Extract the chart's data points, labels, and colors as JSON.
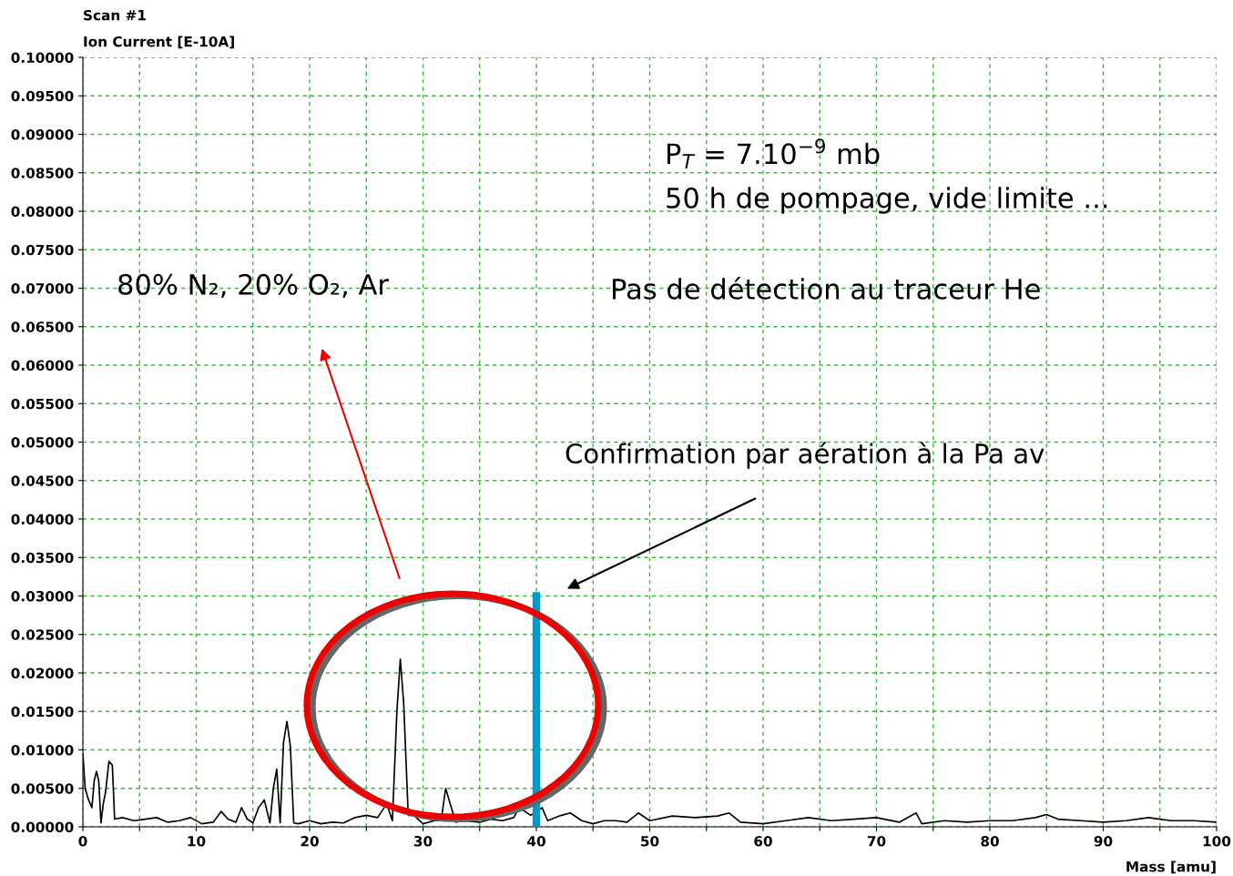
{
  "chart_data": {
    "type": "line",
    "title": "Scan #1",
    "ylabel": "Ion Current [E-10A]",
    "xlabel": "Mass [amu]",
    "annotations": [
      "P$_{T}$ = 7.10$^{−9}$ mb",
      "50 h de pompage, vide limite ...",
      "80% N₂, 20% O₂, Ar",
      "Pas de détection au traceur He",
      "Confirmation par aération à la Pa av"
    ],
    "xlim": [
      0,
      100
    ],
    "xticks": [
      0,
      {
        "value": 5,
        "label": null
      },
      10,
      {
        "value": 15,
        "label": null
      },
      20,
      {
        "value": 25,
        "label": null
      },
      30,
      {
        "value": 35,
        "label": null
      },
      40,
      {
        "value": 45,
        "label": null
      },
      50,
      {
        "value": 55,
        "label": null
      },
      60,
      {
        "value": 65,
        "label": null
      },
      70,
      {
        "value": 75,
        "label": null
      },
      80,
      {
        "value": 85,
        "label": null
      },
      90,
      {
        "value": 95,
        "label": null
      },
      100
    ],
    "ylim": [
      0,
      0.1
    ],
    "yticks": [
      {
        "value": 0,
        "label": "0.00000"
      },
      {
        "value": 0.005,
        "label": "0.00500"
      },
      {
        "value": 0.01,
        "label": "0.01000"
      },
      {
        "value": 0.015,
        "label": "0.01500"
      },
      {
        "value": 0.02,
        "label": "0.02000"
      },
      {
        "value": 0.025,
        "label": "0.02500"
      },
      {
        "value": 0.03,
        "label": "0.03000"
      },
      {
        "value": 0.035,
        "label": "0.03500"
      },
      {
        "value": 0.04,
        "label": "0.04000"
      },
      {
        "value": 0.045,
        "label": "0.04500"
      },
      {
        "value": 0.05,
        "label": "0.05000"
      },
      {
        "value": 0.055,
        "label": "0.05500"
      },
      {
        "value": 0.06,
        "label": "0.06000"
      },
      {
        "value": 0.065,
        "label": "0.06500"
      },
      {
        "value": 0.07,
        "label": "0.07000"
      },
      {
        "value": 0.075,
        "label": "0.07500"
      },
      {
        "value": 0.08,
        "label": "0.08000"
      },
      {
        "value": 0.085,
        "label": "0.08500"
      },
      {
        "value": 0.09,
        "label": "0.09000"
      },
      {
        "value": 0.095,
        "label": "0.09500"
      },
      {
        "value": 0.1,
        "label": "0.10000"
      }
    ],
    "grid": true,
    "series": [
      {
        "color": "#000000",
        "x": [
          0,
          0.2,
          0.5,
          0.8,
          1.0,
          1.2,
          1.4,
          1.6,
          1.8,
          2.0,
          2.3,
          2.6,
          2.8,
          3.5,
          4.5,
          5.5,
          6.5,
          7.5,
          8.5,
          9.5,
          10.5,
          11.5,
          12.2,
          12.8,
          13.5,
          14.0,
          14.5,
          15.0,
          15.5,
          16.0,
          16.5,
          16.8,
          17.1,
          17.4,
          17.7,
          18.0,
          18.3,
          18.6,
          19,
          20,
          21,
          22,
          23,
          24,
          25,
          26,
          26.8,
          27.3,
          27.7,
          28.0,
          28.3,
          28.7,
          29.2,
          30,
          31,
          31.6,
          32.0,
          32.4,
          32.9,
          33.5,
          35,
          36,
          37,
          38,
          38.5,
          39.5,
          40.5,
          41,
          42,
          43,
          44,
          45,
          46,
          47,
          48,
          49,
          50,
          52,
          54,
          56,
          57,
          58,
          60,
          62,
          64,
          66,
          68,
          70,
          72,
          73.5,
          74,
          76,
          78,
          80,
          82,
          84,
          85,
          86,
          88,
          90,
          92,
          94,
          96,
          98,
          100
        ],
        "values": [
          0.0095,
          0.005,
          0.0035,
          0.0025,
          0.006,
          0.0072,
          0.006,
          0.0005,
          0.003,
          0.0045,
          0.0085,
          0.008,
          0.001,
          0.0012,
          0.0008,
          0.001,
          0.0012,
          0.0006,
          0.0008,
          0.0012,
          0.0004,
          0.0006,
          0.002,
          0.001,
          0.0006,
          0.0025,
          0.001,
          0.0005,
          0.0025,
          0.0035,
          0.0005,
          0.005,
          0.0075,
          0.0005,
          0.011,
          0.0137,
          0.0105,
          0.0005,
          0.0004,
          0.0008,
          0.0004,
          0.0006,
          0.0005,
          0.0012,
          0.0015,
          0.0012,
          0.003,
          0.0008,
          0.015,
          0.0218,
          0.016,
          0.0015,
          0.0015,
          0.0004,
          0.0008,
          0.0008,
          0.005,
          0.003,
          0.0006,
          0.0008,
          0.0006,
          0.001,
          0.0008,
          0.0012,
          0.0025,
          0.0015,
          0.0025,
          0.0008,
          0.0014,
          0.0018,
          0.0008,
          0.0004,
          0.0008,
          0.0008,
          0.0006,
          0.0018,
          0.0008,
          0.0014,
          0.0012,
          0.0014,
          0.0018,
          0.0006,
          0.0004,
          0.0008,
          0.0012,
          0.0008,
          0.001,
          0.0012,
          0.0006,
          0.0018,
          0.0004,
          0.0008,
          0.0006,
          0.0008,
          0.0008,
          0.0012,
          0.0016,
          0.001,
          0.0008,
          0.0006,
          0.0008,
          0.0012,
          0.0008,
          0.0008,
          0.0006
        ]
      },
      {
        "color": "#0099cc",
        "x": [
          40,
          40
        ],
        "values": [
          0,
          0.03
        ]
      }
    ]
  }
}
